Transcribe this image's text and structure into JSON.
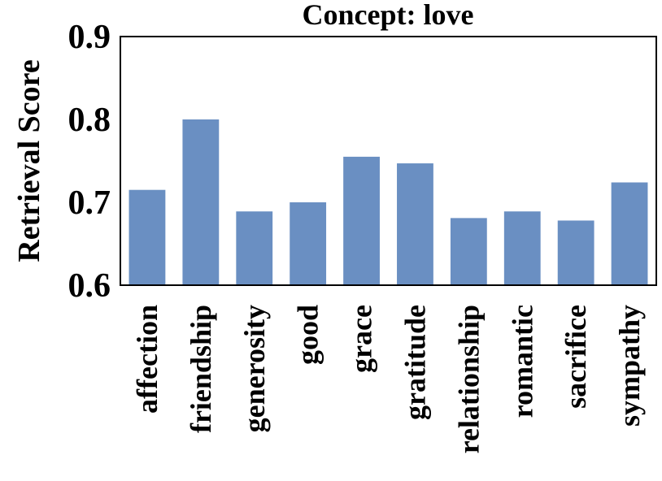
{
  "chart_data": {
    "type": "bar",
    "title": "Concept: love",
    "xlabel": "",
    "ylabel": "Retrieval Score",
    "ylim": [
      0.6,
      0.9
    ],
    "yticks": [
      "0.6",
      "0.7",
      "0.8",
      "0.9"
    ],
    "grid": false,
    "legend": "none",
    "bar_color": "#6a8fc2",
    "categories": [
      "affection",
      "friendship",
      "generosity",
      "good",
      "grace",
      "gratitude",
      "relationship",
      "romantic",
      "sacrifice",
      "sympathy"
    ],
    "values": [
      0.715,
      0.8,
      0.689,
      0.7,
      0.755,
      0.747,
      0.681,
      0.689,
      0.678,
      0.724
    ]
  }
}
